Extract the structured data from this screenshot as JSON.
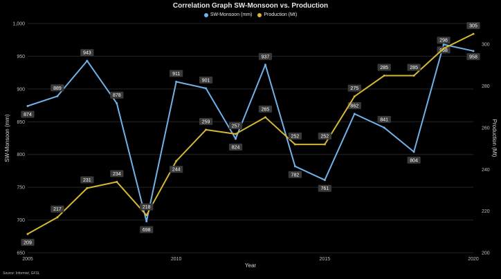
{
  "chart_data": {
    "type": "line",
    "title": "Correlation Graph SW-Monsoon vs. Production",
    "xlabel": "Year",
    "ylabel_left": "SW-Monsoon (mm)",
    "ylabel_right": "Production (Mt)",
    "x": [
      2005,
      2006,
      2007,
      2008,
      2009,
      2010,
      2011,
      2012,
      2013,
      2014,
      2015,
      2016,
      2017,
      2018,
      2019,
      2020
    ],
    "x_ticks": [
      "2005",
      "2010",
      "2015",
      "2020"
    ],
    "y_left_ticks": [
      "650",
      "700",
      "750",
      "800",
      "850",
      "900",
      "950",
      "1,000"
    ],
    "y_right_ticks": [
      "200",
      "220",
      "240",
      "260",
      "280",
      "300"
    ],
    "ylim_left": [
      650,
      1000
    ],
    "ylim_right": [
      200,
      310
    ],
    "grid": true,
    "legend_position": "top-center",
    "series": [
      {
        "name": "SW-Monsoon (mm)",
        "axis": "left",
        "color": "#6fb3ea",
        "values": [
          874,
          889,
          943,
          878,
          698,
          911,
          901,
          824,
          937,
          782,
          761,
          862,
          841,
          804,
          968,
          958
        ],
        "labels": [
          "874",
          "889",
          "943",
          "878",
          "698",
          "911",
          "901",
          "824",
          "937",
          "782",
          "761",
          "862",
          "841",
          "804",
          "968",
          "958"
        ]
      },
      {
        "name": "Production (Mt)",
        "axis": "right",
        "color": "#d6b834",
        "values": [
          209,
          217,
          231,
          234,
          218,
          244,
          259,
          257,
          265,
          252,
          252,
          275,
          285,
          285,
          298,
          305
        ],
        "labels": [
          "209",
          "217",
          "231",
          "234",
          "218",
          "244",
          "259",
          "257",
          "265",
          "252",
          "252",
          "275",
          "285",
          "285",
          "298",
          "305"
        ]
      }
    ]
  },
  "source": "Source: Informist, GFSL"
}
